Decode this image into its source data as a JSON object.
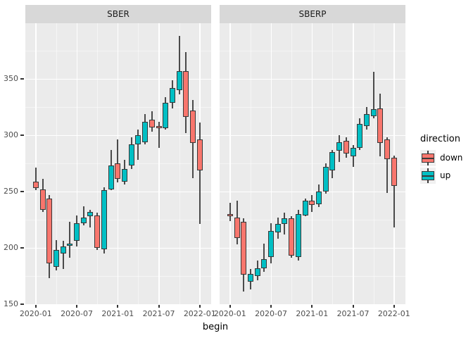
{
  "chart_data": {
    "type": "candlestick",
    "x": {
      "label": "begin",
      "ticks": [
        "2020-01",
        "2020-07",
        "2021-01",
        "2021-07",
        "2022-01"
      ]
    },
    "y": {
      "ticks": [
        150,
        200,
        250,
        300,
        350
      ],
      "minor_ticks": [
        175,
        225,
        275,
        325,
        375
      ],
      "range": [
        149.4,
        399.4
      ]
    },
    "legend": {
      "title": "direction",
      "entries": [
        {
          "label": "down",
          "color": "#F8766D"
        },
        {
          "label": "up",
          "color": "#00BFC4"
        }
      ]
    },
    "colors": {
      "down": "#F8766D",
      "up": "#00BFC4",
      "panel_bg": "#EBEBEB",
      "strip_bg": "#D8D8D8",
      "grid": "#FFFFFF",
      "wick": "#4A4A4A",
      "candle_border": "#383838",
      "axis_text": "#4D4D4D"
    },
    "facets": [
      {
        "label": "SBER",
        "candles": [
          {
            "begin": "2020-01",
            "direction": "down",
            "open": 259,
            "high": 271,
            "low": 251,
            "close": 253
          },
          {
            "begin": "2020-02",
            "direction": "down",
            "open": 252,
            "high": 261,
            "low": 232,
            "close": 234
          },
          {
            "begin": "2020-03",
            "direction": "down",
            "open": 244,
            "high": 247,
            "low": 173,
            "close": 186
          },
          {
            "begin": "2020-04",
            "direction": "up",
            "open": 183,
            "high": 207,
            "low": 180,
            "close": 198
          },
          {
            "begin": "2020-05",
            "direction": "up",
            "open": 195,
            "high": 206,
            "low": 181,
            "close": 201
          },
          {
            "begin": "2020-06",
            "direction": "up",
            "open": 202,
            "high": 223,
            "low": 191,
            "close": 204
          },
          {
            "begin": "2020-07",
            "direction": "up",
            "open": 206,
            "high": 229,
            "low": 201,
            "close": 222
          },
          {
            "begin": "2020-08",
            "direction": "up",
            "open": 222,
            "high": 237,
            "low": 220,
            "close": 227
          },
          {
            "begin": "2020-09",
            "direction": "up",
            "open": 228,
            "high": 234,
            "low": 218,
            "close": 232
          },
          {
            "begin": "2020-10",
            "direction": "down",
            "open": 229,
            "high": 231,
            "low": 198,
            "close": 200
          },
          {
            "begin": "2020-11",
            "direction": "up",
            "open": 199,
            "high": 254,
            "low": 195,
            "close": 251
          },
          {
            "begin": "2020-12",
            "direction": "up",
            "open": 252,
            "high": 287,
            "low": 251,
            "close": 273
          },
          {
            "begin": "2021-01",
            "direction": "down",
            "open": 275,
            "high": 296,
            "low": 258,
            "close": 261
          },
          {
            "begin": "2021-02",
            "direction": "up",
            "open": 259,
            "high": 278,
            "low": 256,
            "close": 270
          },
          {
            "begin": "2021-03",
            "direction": "up",
            "open": 273,
            "high": 298,
            "low": 270,
            "close": 292
          },
          {
            "begin": "2021-04",
            "direction": "up",
            "open": 292,
            "high": 305,
            "low": 278,
            "close": 300
          },
          {
            "begin": "2021-05",
            "direction": "up",
            "open": 294,
            "high": 319,
            "low": 292,
            "close": 312
          },
          {
            "begin": "2021-06",
            "direction": "down",
            "open": 314,
            "high": 321,
            "low": 303,
            "close": 307
          },
          {
            "begin": "2021-07",
            "direction": "down",
            "open": 308,
            "high": 312,
            "low": 289,
            "close": 306
          },
          {
            "begin": "2021-08",
            "direction": "up",
            "open": 306,
            "high": 334,
            "low": 305,
            "close": 329
          },
          {
            "begin": "2021-09",
            "direction": "up",
            "open": 329,
            "high": 349,
            "low": 324,
            "close": 342
          },
          {
            "begin": "2021-10",
            "direction": "up",
            "open": 340,
            "high": 388,
            "low": 336,
            "close": 357
          },
          {
            "begin": "2021-11",
            "direction": "down",
            "open": 357,
            "high": 374,
            "low": 302,
            "close": 316
          },
          {
            "begin": "2021-12",
            "direction": "down",
            "open": 322,
            "high": 331,
            "low": 262,
            "close": 293
          },
          {
            "begin": "2022-01",
            "direction": "down",
            "open": 296,
            "high": 311,
            "low": 221,
            "close": 269
          }
        ]
      },
      {
        "label": "SBERP",
        "candles": [
          {
            "begin": "2020-01",
            "direction": "down",
            "open": 230,
            "high": 240,
            "low": 224,
            "close": 228
          },
          {
            "begin": "2020-02",
            "direction": "down",
            "open": 227,
            "high": 242,
            "low": 203,
            "close": 209
          },
          {
            "begin": "2020-03",
            "direction": "down",
            "open": 223,
            "high": 226,
            "low": 161,
            "close": 176
          },
          {
            "begin": "2020-04",
            "direction": "up",
            "open": 170,
            "high": 181,
            "low": 163,
            "close": 177
          },
          {
            "begin": "2020-05",
            "direction": "up",
            "open": 175,
            "high": 189,
            "low": 171,
            "close": 182
          },
          {
            "begin": "2020-06",
            "direction": "up",
            "open": 182,
            "high": 204,
            "low": 179,
            "close": 190
          },
          {
            "begin": "2020-07",
            "direction": "up",
            "open": 192,
            "high": 222,
            "low": 186,
            "close": 215
          },
          {
            "begin": "2020-08",
            "direction": "up",
            "open": 214,
            "high": 227,
            "low": 208,
            "close": 221
          },
          {
            "begin": "2020-09",
            "direction": "up",
            "open": 221,
            "high": 231,
            "low": 212,
            "close": 226
          },
          {
            "begin": "2020-10",
            "direction": "down",
            "open": 226,
            "high": 228,
            "low": 191,
            "close": 193
          },
          {
            "begin": "2020-11",
            "direction": "up",
            "open": 192,
            "high": 234,
            "low": 189,
            "close": 230
          },
          {
            "begin": "2020-12",
            "direction": "up",
            "open": 229,
            "high": 244,
            "low": 228,
            "close": 242
          },
          {
            "begin": "2021-01",
            "direction": "down",
            "open": 242,
            "high": 247,
            "low": 232,
            "close": 238
          },
          {
            "begin": "2021-02",
            "direction": "up",
            "open": 239,
            "high": 256,
            "low": 236,
            "close": 250
          },
          {
            "begin": "2021-03",
            "direction": "up",
            "open": 250,
            "high": 275,
            "low": 248,
            "close": 272
          },
          {
            "begin": "2021-04",
            "direction": "up",
            "open": 269,
            "high": 287,
            "low": 262,
            "close": 285
          },
          {
            "begin": "2021-05",
            "direction": "up",
            "open": 286,
            "high": 300,
            "low": 276,
            "close": 294
          },
          {
            "begin": "2021-06",
            "direction": "down",
            "open": 295,
            "high": 298,
            "low": 280,
            "close": 284
          },
          {
            "begin": "2021-07",
            "direction": "up",
            "open": 281,
            "high": 291,
            "low": 272,
            "close": 289
          },
          {
            "begin": "2021-08",
            "direction": "up",
            "open": 289,
            "high": 315,
            "low": 287,
            "close": 310
          },
          {
            "begin": "2021-09",
            "direction": "up",
            "open": 308,
            "high": 325,
            "low": 305,
            "close": 319
          },
          {
            "begin": "2021-10",
            "direction": "up",
            "open": 317,
            "high": 356,
            "low": 315,
            "close": 323
          },
          {
            "begin": "2021-11",
            "direction": "down",
            "open": 324,
            "high": 337,
            "low": 281,
            "close": 293
          },
          {
            "begin": "2021-12",
            "direction": "down",
            "open": 296,
            "high": 298,
            "low": 249,
            "close": 279
          },
          {
            "begin": "2022-01",
            "direction": "down",
            "open": 280,
            "high": 282,
            "low": 218,
            "close": 255
          }
        ]
      }
    ]
  }
}
